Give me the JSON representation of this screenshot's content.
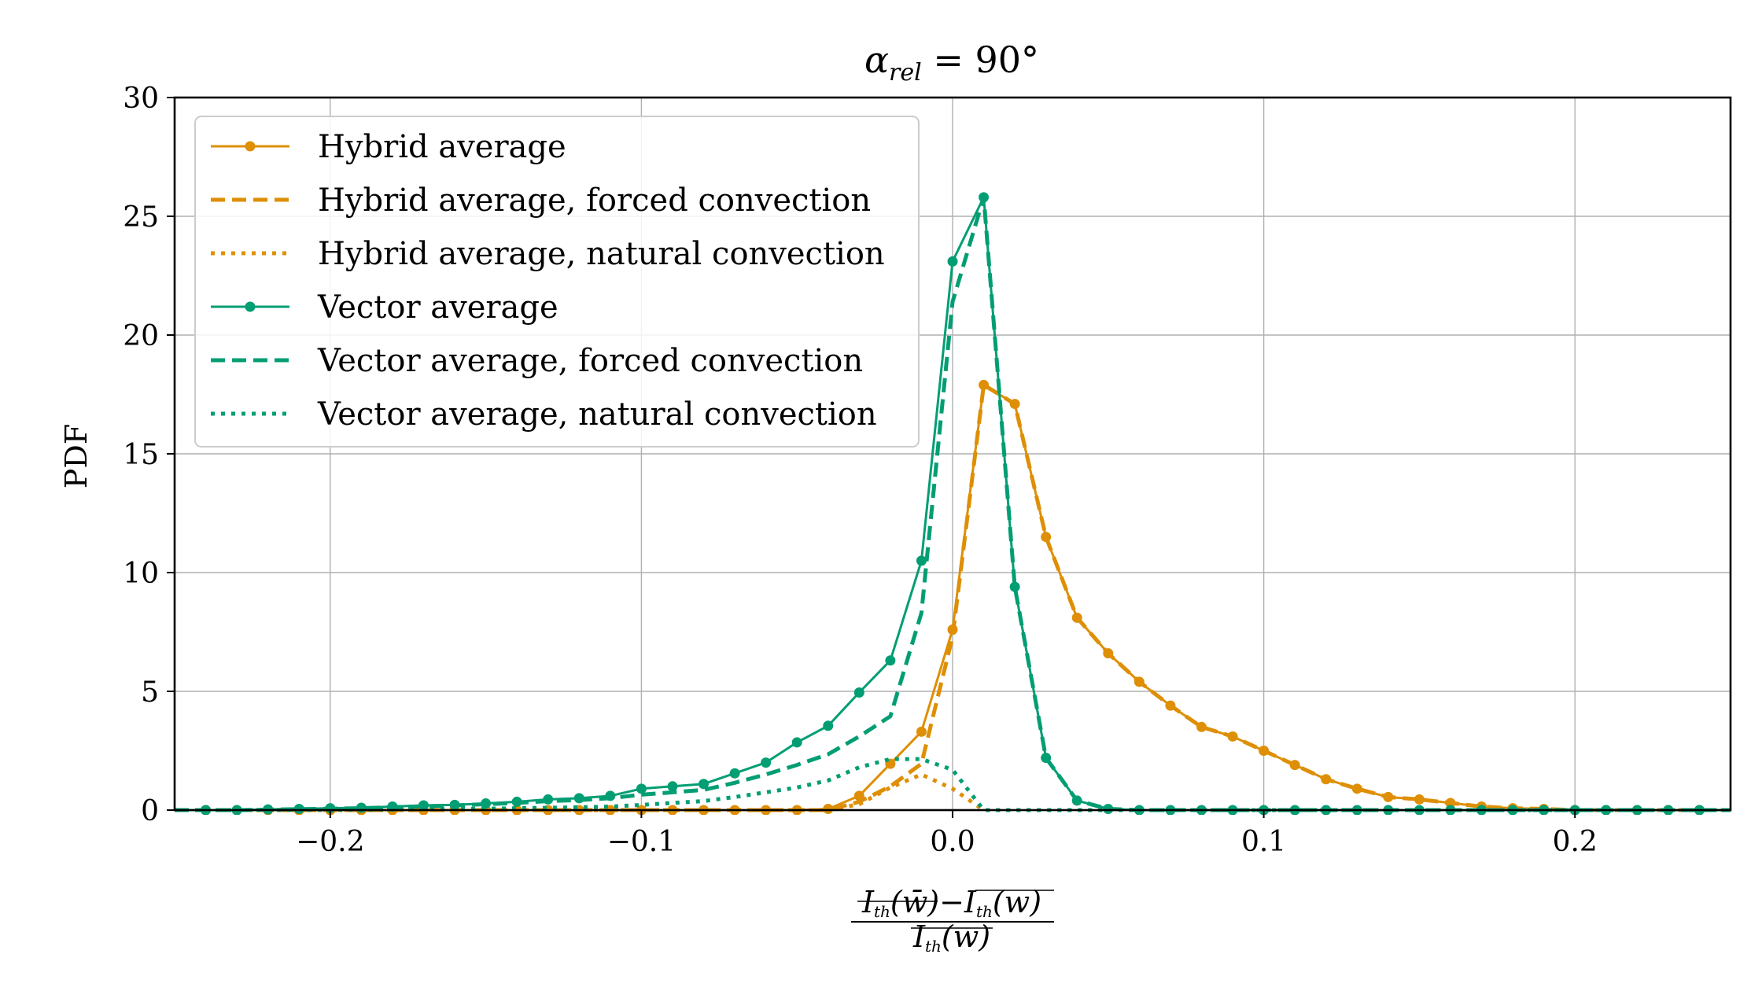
{
  "chart_data": {
    "type": "line",
    "title": "α_rel = 90°",
    "title_parts": {
      "symbol": "α",
      "subscript": "rel",
      "rest": " = 90°"
    },
    "xlabel": "(I_th(w̄) − mean(I_th(w))) / mean(I_th(w))",
    "xlabel_parts": {
      "num_a": "I",
      "num_a_sub": "th",
      "num_a_arg": "(w̄)",
      "num_op": "−",
      "num_b": "I",
      "num_b_sub": "th",
      "num_b_arg": "(w)",
      "den": "I",
      "den_sub": "th",
      "den_arg": "(w)"
    },
    "ylabel": "PDF",
    "xlim": [
      -0.25,
      0.25
    ],
    "ylim": [
      0,
      30
    ],
    "xticks": [
      -0.2,
      -0.1,
      0.0,
      0.1,
      0.2
    ],
    "xtick_labels": [
      "−0.2",
      "−0.1",
      "0.0",
      "0.1",
      "0.2"
    ],
    "yticks": [
      0,
      5,
      10,
      15,
      20,
      25,
      30
    ],
    "ytick_labels": [
      "0",
      "5",
      "10",
      "15",
      "20",
      "25",
      "30"
    ],
    "grid": true,
    "legend_position": "top-left",
    "x": [
      -0.25,
      -0.24,
      -0.23,
      -0.22,
      -0.21,
      -0.2,
      -0.19,
      -0.18,
      -0.17,
      -0.16,
      -0.15,
      -0.14,
      -0.13,
      -0.12,
      -0.11,
      -0.1,
      -0.09,
      -0.08,
      -0.07,
      -0.06,
      -0.05,
      -0.04,
      -0.03,
      -0.02,
      -0.01,
      0.0,
      0.01,
      0.02,
      0.03,
      0.04,
      0.05,
      0.06,
      0.07,
      0.08,
      0.09,
      0.1,
      0.11,
      0.12,
      0.13,
      0.14,
      0.15,
      0.16,
      0.17,
      0.18,
      0.19,
      0.2,
      0.21,
      0.22,
      0.23,
      0.24,
      0.25
    ],
    "series": [
      {
        "name": "Hybrid average",
        "color": "#de8f05",
        "style": "solid",
        "markers": true,
        "values": [
          0.0,
          0.0,
          0.0,
          0.0,
          0.0,
          0.0,
          0.0,
          0.0,
          0.0,
          0.0,
          0.0,
          0.0,
          0.0,
          0.0,
          0.0,
          0.0,
          0.0,
          0.0,
          0.0,
          0.0,
          0.0,
          0.05,
          0.6,
          1.95,
          3.3,
          7.6,
          17.9,
          17.1,
          11.5,
          8.1,
          6.6,
          5.4,
          4.4,
          3.5,
          3.1,
          2.5,
          1.9,
          1.3,
          0.9,
          0.55,
          0.45,
          0.3,
          0.15,
          0.08,
          0.05,
          0.0,
          0.0,
          0.0,
          0.0,
          0.0,
          0.0
        ]
      },
      {
        "name": "Hybrid average, forced convection",
        "color": "#de8f05",
        "style": "dashed",
        "markers": false,
        "values": [
          0.0,
          0.0,
          0.0,
          0.0,
          0.0,
          0.0,
          0.0,
          0.0,
          0.0,
          0.0,
          0.0,
          0.0,
          0.0,
          0.0,
          0.0,
          0.0,
          0.0,
          0.0,
          0.0,
          0.0,
          0.0,
          0.0,
          0.35,
          1.0,
          1.95,
          7.3,
          17.9,
          17.1,
          11.5,
          8.1,
          6.6,
          5.4,
          4.4,
          3.5,
          3.1,
          2.5,
          1.9,
          1.3,
          0.9,
          0.55,
          0.45,
          0.3,
          0.15,
          0.08,
          0.05,
          0.0,
          0.0,
          0.0,
          0.0,
          0.0,
          0.0
        ]
      },
      {
        "name": "Hybrid average, natural convection",
        "color": "#de8f05",
        "style": "dotted",
        "markers": false,
        "values": [
          0.0,
          0.0,
          0.0,
          0.0,
          0.0,
          0.0,
          0.0,
          0.0,
          0.0,
          0.0,
          0.0,
          0.0,
          0.0,
          0.0,
          0.0,
          0.0,
          0.0,
          0.0,
          0.0,
          0.0,
          0.0,
          0.0,
          0.25,
          0.95,
          1.5,
          0.9,
          0.0,
          0.0,
          0.0,
          0.0,
          0.0,
          0.0,
          0.0,
          0.0,
          0.0,
          0.0,
          0.0,
          0.0,
          0.0,
          0.0,
          0.0,
          0.0,
          0.0,
          0.0,
          0.0,
          0.0,
          0.0,
          0.0,
          0.0,
          0.0,
          0.0
        ]
      },
      {
        "name": "Vector average",
        "color": "#029e73",
        "style": "solid",
        "markers": true,
        "values": [
          0.0,
          0.0,
          0.0,
          0.03,
          0.05,
          0.08,
          0.1,
          0.15,
          0.2,
          0.22,
          0.28,
          0.35,
          0.45,
          0.5,
          0.6,
          0.9,
          1.0,
          1.1,
          1.55,
          2.0,
          2.85,
          3.55,
          4.95,
          6.3,
          10.5,
          23.1,
          25.8,
          9.4,
          2.2,
          0.4,
          0.05,
          0.0,
          0.0,
          0.0,
          0.0,
          0.0,
          0.0,
          0.0,
          0.0,
          0.0,
          0.0,
          0.0,
          0.0,
          0.0,
          0.0,
          0.0,
          0.0,
          0.0,
          0.0,
          0.0,
          0.0
        ]
      },
      {
        "name": "Vector average, forced convection",
        "color": "#029e73",
        "style": "dashed",
        "markers": false,
        "values": [
          0.0,
          0.0,
          0.0,
          0.02,
          0.04,
          0.06,
          0.08,
          0.12,
          0.16,
          0.2,
          0.25,
          0.3,
          0.38,
          0.42,
          0.5,
          0.65,
          0.75,
          0.85,
          1.15,
          1.5,
          1.9,
          2.35,
          3.1,
          3.95,
          8.3,
          21.4,
          25.8,
          9.4,
          2.2,
          0.4,
          0.05,
          0.0,
          0.0,
          0.0,
          0.0,
          0.0,
          0.0,
          0.0,
          0.0,
          0.0,
          0.0,
          0.0,
          0.0,
          0.0,
          0.0,
          0.0,
          0.0,
          0.0,
          0.0,
          0.0,
          0.0
        ]
      },
      {
        "name": "Vector average, natural convection",
        "color": "#029e73",
        "style": "dotted",
        "markers": false,
        "values": [
          0.0,
          0.0,
          0.0,
          0.01,
          0.01,
          0.02,
          0.02,
          0.03,
          0.04,
          0.05,
          0.06,
          0.08,
          0.1,
          0.12,
          0.15,
          0.22,
          0.3,
          0.38,
          0.55,
          0.75,
          0.95,
          1.25,
          1.8,
          2.15,
          2.15,
          1.7,
          0.0,
          0.0,
          0.0,
          0.0,
          0.0,
          0.0,
          0.0,
          0.0,
          0.0,
          0.0,
          0.0,
          0.0,
          0.0,
          0.0,
          0.0,
          0.0,
          0.0,
          0.0,
          0.0,
          0.0,
          0.0,
          0.0,
          0.0,
          0.0,
          0.0
        ]
      }
    ]
  }
}
